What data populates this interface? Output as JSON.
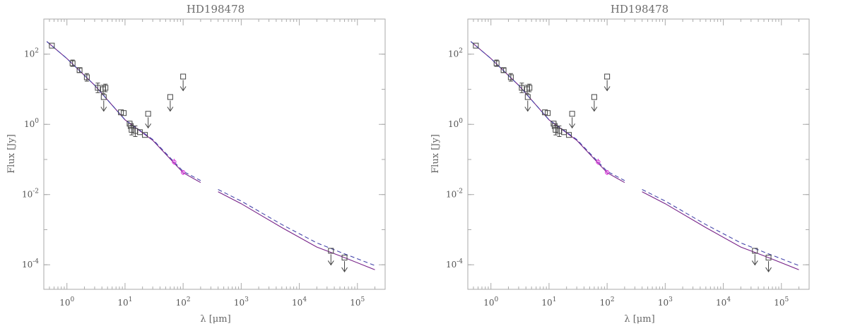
{
  "colors": {
    "frame": "#aaaaaa",
    "data_points": "#444444",
    "synthetic_points": "#dd44dd",
    "model_solid": "#772288",
    "model_dashed": "#4444aa",
    "title": "#6e6e6e"
  },
  "chart_data": [
    {
      "type": "scatter",
      "title": "HD198478",
      "xlabel": "λ [μm]",
      "ylabel": "Flux [Jy]",
      "x_scale": "log",
      "y_scale": "log",
      "xlim": [
        0.4,
        300000
      ],
      "ylim": [
        2e-05,
        1000
      ],
      "grid": false,
      "x_ticks": [
        {
          "value": 1,
          "base": "10",
          "exp": "0"
        },
        {
          "value": 10,
          "base": "10",
          "exp": "1"
        },
        {
          "value": 100,
          "base": "10",
          "exp": "2"
        },
        {
          "value": 1000,
          "base": "10",
          "exp": "3"
        },
        {
          "value": 10000,
          "base": "10",
          "exp": "4"
        },
        {
          "value": 100000,
          "base": "10",
          "exp": "5"
        }
      ],
      "y_ticks": [
        {
          "value": 0.0001,
          "base": "10",
          "exp": "-4"
        },
        {
          "value": 0.01,
          "base": "10",
          "exp": "-2"
        },
        {
          "value": 1,
          "base": "10",
          "exp": "0"
        },
        {
          "value": 100,
          "base": "10",
          "exp": "2"
        }
      ],
      "photometry": [
        {
          "x": 0.55,
          "y": 175
        },
        {
          "x": 1.25,
          "y": 55,
          "err": [
            45,
            68
          ]
        },
        {
          "x": 1.65,
          "y": 35,
          "err": [
            30,
            40
          ]
        },
        {
          "x": 2.2,
          "y": 22,
          "err": [
            17,
            28
          ]
        },
        {
          "x": 3.4,
          "y": 11,
          "err": [
            8,
            15
          ]
        },
        {
          "x": 4.2,
          "y": 10,
          "err": [
            7.5,
            13
          ]
        },
        {
          "x": 4.6,
          "y": 11,
          "err": [
            8.5,
            14
          ]
        },
        {
          "x": 8.5,
          "y": 2.2
        },
        {
          "x": 9.5,
          "y": 2.1
        },
        {
          "x": 12,
          "y": 1.05
        },
        {
          "x": 12.5,
          "y": 0.9
        },
        {
          "x": 13,
          "y": 0.7,
          "err": [
            0.5,
            0.95
          ]
        },
        {
          "x": 15,
          "y": 0.65,
          "err": [
            0.45,
            0.9
          ]
        },
        {
          "x": 18,
          "y": 0.6
        },
        {
          "x": 22,
          "y": 0.5
        }
      ],
      "upper_limits": [
        {
          "x": 4.3,
          "y": 6
        },
        {
          "x": 25,
          "y": 2
        },
        {
          "x": 60,
          "y": 6
        },
        {
          "x": 100,
          "y": 23
        },
        {
          "x": 35000,
          "y": 0.00025
        },
        {
          "x": 60000,
          "y": 0.00016
        }
      ],
      "synthetic": [
        {
          "x": 70,
          "y": 0.085,
          "err": [
            0.07,
            0.105
          ]
        },
        {
          "x": 100,
          "y": 0.043,
          "err": [
            0.036,
            0.05
          ]
        }
      ],
      "series": [
        {
          "style": "solid",
          "segments": [
            [
              [
                0.45,
                230
              ],
              [
                1,
                75
              ],
              [
                3,
                13
              ],
              [
                10,
                1.35
              ],
              [
                30,
                0.35
              ],
              [
                100,
                0.042
              ],
              [
                200,
                0.022
              ]
            ],
            [
              [
                400,
                0.012
              ],
              [
                1000,
                0.0055
              ],
              [
                5000,
                0.00115
              ],
              [
                20000,
                0.00032
              ],
              [
                50000,
                0.00018
              ],
              [
                200000,
                7.2e-05
              ]
            ]
          ]
        },
        {
          "style": "dashed",
          "segments": [
            [
              [
                0.45,
                230
              ],
              [
                1,
                75
              ],
              [
                3,
                13
              ],
              [
                10,
                1.35
              ],
              [
                30,
                0.37
              ],
              [
                100,
                0.046
              ],
              [
                200,
                0.025
              ]
            ],
            [
              [
                400,
                0.014
              ],
              [
                1000,
                0.0065
              ],
              [
                5000,
                0.0014
              ],
              [
                20000,
                0.00042
              ],
              [
                50000,
                0.00023
              ],
              [
                200000,
                9.5e-05
              ]
            ]
          ]
        }
      ]
    },
    {
      "type": "scatter",
      "title": "HD198478",
      "xlabel": "λ [μm]",
      "ylabel": "Flux [Jy]",
      "x_scale": "log",
      "y_scale": "log",
      "xlim": [
        0.4,
        300000
      ],
      "ylim": [
        2e-05,
        1000
      ],
      "grid": false,
      "x_ticks": [
        {
          "value": 1,
          "base": "10",
          "exp": "0"
        },
        {
          "value": 10,
          "base": "10",
          "exp": "1"
        },
        {
          "value": 100,
          "base": "10",
          "exp": "2"
        },
        {
          "value": 1000,
          "base": "10",
          "exp": "3"
        },
        {
          "value": 10000,
          "base": "10",
          "exp": "4"
        },
        {
          "value": 100000,
          "base": "10",
          "exp": "5"
        }
      ],
      "y_ticks": [
        {
          "value": 0.0001,
          "base": "10",
          "exp": "-4"
        },
        {
          "value": 0.01,
          "base": "10",
          "exp": "-2"
        },
        {
          "value": 1,
          "base": "10",
          "exp": "0"
        },
        {
          "value": 100,
          "base": "10",
          "exp": "2"
        }
      ],
      "photometry": [
        {
          "x": 0.55,
          "y": 175
        },
        {
          "x": 1.25,
          "y": 55,
          "err": [
            45,
            68
          ]
        },
        {
          "x": 1.65,
          "y": 35,
          "err": [
            30,
            40
          ]
        },
        {
          "x": 2.2,
          "y": 22,
          "err": [
            17,
            28
          ]
        },
        {
          "x": 3.4,
          "y": 11,
          "err": [
            8,
            15
          ]
        },
        {
          "x": 4.2,
          "y": 10,
          "err": [
            7.5,
            13
          ]
        },
        {
          "x": 4.6,
          "y": 11,
          "err": [
            8.5,
            14
          ]
        },
        {
          "x": 8.5,
          "y": 2.2
        },
        {
          "x": 9.5,
          "y": 2.1
        },
        {
          "x": 12,
          "y": 1.05
        },
        {
          "x": 12.5,
          "y": 0.9
        },
        {
          "x": 13,
          "y": 0.7,
          "err": [
            0.5,
            0.95
          ]
        },
        {
          "x": 15,
          "y": 0.65,
          "err": [
            0.45,
            0.9
          ]
        },
        {
          "x": 18,
          "y": 0.6
        },
        {
          "x": 22,
          "y": 0.5
        }
      ],
      "upper_limits": [
        {
          "x": 4.3,
          "y": 6
        },
        {
          "x": 25,
          "y": 2
        },
        {
          "x": 60,
          "y": 6
        },
        {
          "x": 100,
          "y": 23
        },
        {
          "x": 35000,
          "y": 0.00025
        },
        {
          "x": 60000,
          "y": 0.00016
        }
      ],
      "synthetic": [
        {
          "x": 70,
          "y": 0.085,
          "err": [
            0.07,
            0.105
          ]
        },
        {
          "x": 100,
          "y": 0.043,
          "err": [
            0.036,
            0.05
          ]
        }
      ],
      "series": [
        {
          "style": "solid",
          "segments": [
            [
              [
                0.45,
                230
              ],
              [
                1,
                75
              ],
              [
                3,
                13
              ],
              [
                10,
                1.35
              ],
              [
                30,
                0.35
              ],
              [
                100,
                0.042
              ],
              [
                200,
                0.022
              ]
            ],
            [
              [
                400,
                0.012
              ],
              [
                1000,
                0.0055
              ],
              [
                5000,
                0.00115
              ],
              [
                20000,
                0.00032
              ],
              [
                50000,
                0.00018
              ],
              [
                200000,
                7.2e-05
              ]
            ]
          ]
        },
        {
          "style": "dashed",
          "segments": [
            [
              [
                0.45,
                230
              ],
              [
                1,
                75
              ],
              [
                3,
                13
              ],
              [
                10,
                1.35
              ],
              [
                30,
                0.37
              ],
              [
                100,
                0.046
              ],
              [
                200,
                0.025
              ]
            ],
            [
              [
                400,
                0.014
              ],
              [
                1000,
                0.0065
              ],
              [
                5000,
                0.0014
              ],
              [
                20000,
                0.00042
              ],
              [
                50000,
                0.00023
              ],
              [
                200000,
                9.5e-05
              ]
            ]
          ]
        }
      ]
    }
  ]
}
